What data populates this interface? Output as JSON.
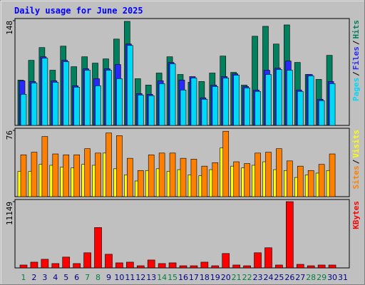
{
  "chart_data": [
    {
      "type": "bar",
      "title": "Daily usage for June 2025",
      "title_color": "#0000ff",
      "legend_separator": "/",
      "series": [
        {
          "name": "Hits",
          "color": "#00805c",
          "values": [
            64,
            92,
            110,
            78,
            112,
            83,
            97,
            88,
            94,
            122,
            147,
            66,
            57,
            74,
            97,
            72,
            61,
            62,
            74,
            98,
            75,
            57,
            126,
            140,
            115,
            142,
            89,
            72,
            65,
            99,
            null
          ]
        },
        {
          "name": "Files",
          "color": "#2828ff",
          "values": [
            63,
            62,
            97,
            63,
            92,
            56,
            80,
            66,
            80,
            86,
            115,
            45,
            44,
            63,
            89,
            64,
            69,
            39,
            57,
            69,
            73,
            55,
            50,
            78,
            81,
            91,
            50,
            72,
            37,
            62,
            null
          ]
        },
        {
          "name": "Pages",
          "color": "#00d8f8",
          "values": [
            44,
            60,
            95,
            61,
            90,
            54,
            78,
            56,
            78,
            66,
            113,
            43,
            42,
            59,
            87,
            50,
            67,
            37,
            55,
            67,
            71,
            53,
            48,
            72,
            79,
            78,
            48,
            70,
            35,
            59,
            null
          ]
        }
      ],
      "ylim": [
        0,
        148
      ],
      "yticks": [
        148
      ]
    },
    {
      "type": "bar",
      "legend_separator": "/",
      "series": [
        {
          "name": "Visits",
          "color": "#ffff00",
          "values": [
            29,
            29,
            37,
            36,
            34,
            33,
            37,
            36,
            50,
            32,
            25,
            18,
            30,
            32,
            29,
            31,
            25,
            24,
            31,
            56,
            35,
            33,
            36,
            40,
            31,
            30,
            22,
            25,
            27,
            30,
            null
          ]
        },
        {
          "name": "Sites",
          "color": "#ff8000",
          "values": [
            48,
            51,
            69,
            49,
            48,
            48,
            55,
            50,
            73,
            70,
            44,
            30,
            48,
            50,
            50,
            44,
            43,
            35,
            39,
            75,
            40,
            38,
            50,
            51,
            55,
            41,
            35,
            30,
            37,
            49,
            null
          ]
        }
      ],
      "ylim": [
        0,
        76
      ],
      "yticks": [
        76
      ]
    },
    {
      "type": "bar",
      "categories": [
        "1",
        "2",
        "3",
        "4",
        "5",
        "6",
        "7",
        "8",
        "9",
        "10",
        "11",
        "12",
        "13",
        "14",
        "15",
        "16",
        "17",
        "18",
        "19",
        "20",
        "21",
        "22",
        "23",
        "24",
        "25",
        "26",
        "27",
        "28",
        "29",
        "30",
        "31"
      ],
      "category_colors": [
        "#008040",
        "#00008b",
        "#00008b",
        "#00008b",
        "#00008b",
        "#00008b",
        "#008040",
        "#008040",
        "#00008b",
        "#00008b",
        "#00008b",
        "#00008b",
        "#00008b",
        "#008040",
        "#008040",
        "#00008b",
        "#00008b",
        "#00008b",
        "#00008b",
        "#00008b",
        "#008040",
        "#008040",
        "#00008b",
        "#00008b",
        "#00008b",
        "#00008b",
        "#00008b",
        "#008040",
        "#008040",
        "#00008b",
        "#00008b"
      ],
      "series": [
        {
          "name": "KBytes",
          "color": "#ff0000",
          "values": [
            485,
            970,
            1450,
            730,
            1820,
            730,
            2545,
            6790,
            2300,
            850,
            970,
            360,
            1330,
            730,
            850,
            360,
            360,
            970,
            360,
            2420,
            485,
            360,
            2545,
            3390,
            485,
            11149,
            600,
            360,
            485,
            485,
            null
          ]
        }
      ],
      "ylim": [
        0,
        11149
      ],
      "yticks": [
        11149
      ]
    }
  ]
}
